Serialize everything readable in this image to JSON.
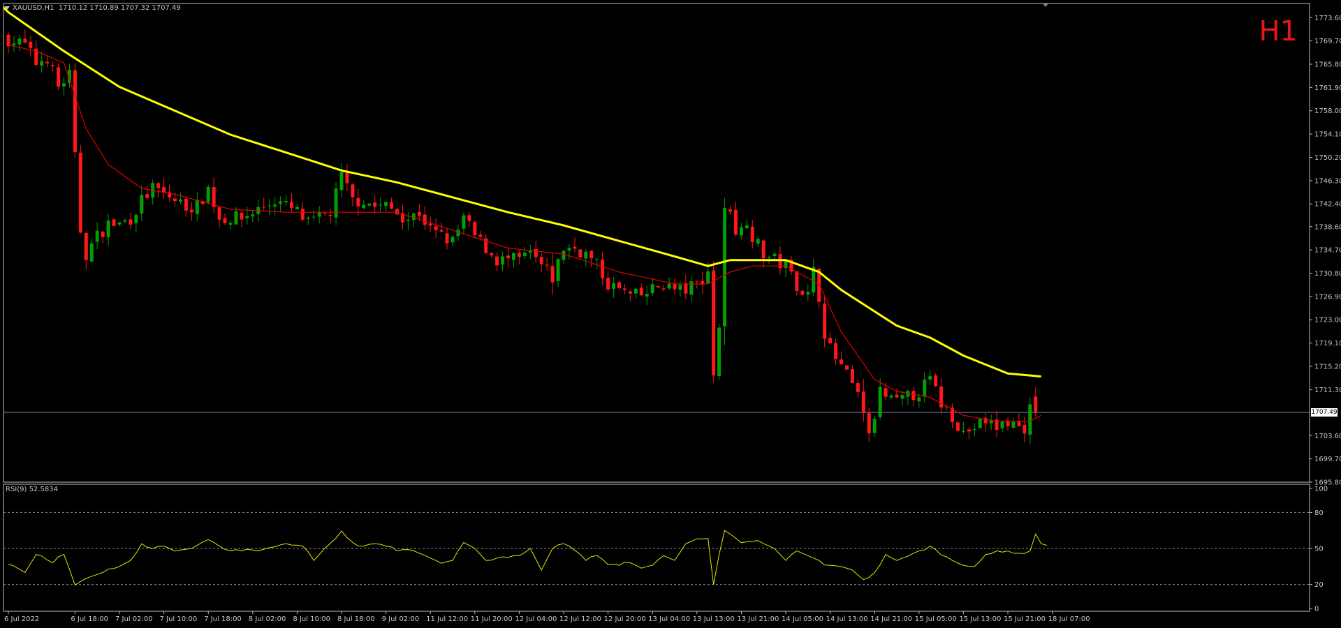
{
  "header": {
    "symbol": "XAUUSD,H1",
    "ohlc": "1710.12 1710.89 1707.32 1707.49"
  },
  "timeframe_label": "H1",
  "current_price": "1707.49",
  "rsi": {
    "label": "RSI(9) 52.5834",
    "levels": [
      80,
      50,
      20
    ],
    "ticks": [
      "100",
      "80",
      "50",
      "20",
      "0"
    ]
  },
  "colors": {
    "bull": "#00a000",
    "bear": "#ff1818",
    "ma_slow": "#ffff00",
    "ma_fast": "#e00000",
    "rsi_line": "#e6e600",
    "axis_text": "#c8c8c8",
    "frame": "#c0c0c0",
    "level_line": "#8c8c8c",
    "price_line": "#7a8aa0",
    "timeframe_text": "#e8151b"
  },
  "chart_data": [
    {
      "type": "candlestick",
      "symbol": "XAUUSD",
      "ylim": [
        1695.8,
        1775.5
      ],
      "y_ticks": [
        "1773.60",
        "1769.70",
        "1765.80",
        "1761.90",
        "1758.00",
        "1754.10",
        "1750.20",
        "1746.30",
        "1742.40",
        "1738.60",
        "1734.70",
        "1730.80",
        "1726.90",
        "1723.00",
        "1719.10",
        "1715.20",
        "1711.30",
        "1707.49",
        "1703.60",
        "1699.70",
        "1695.80"
      ],
      "x_ticks": [
        {
          "label": "6 Jul 2022",
          "i": 0
        },
        {
          "label": "6 Jul 18:00",
          "i": 12
        },
        {
          "label": "7 Jul 02:00",
          "i": 20
        },
        {
          "label": "7 Jul 10:00",
          "i": 28
        },
        {
          "label": "7 Jul 18:00",
          "i": 36
        },
        {
          "label": "8 Jul 02:00",
          "i": 44
        },
        {
          "label": "8 Jul 10:00",
          "i": 52
        },
        {
          "label": "8 Jul 18:00",
          "i": 60
        },
        {
          "label": "9 Jul 02:00",
          "i": 68
        },
        {
          "label": "11 Jul 12:00",
          "i": 76
        },
        {
          "label": "11 Jul 20:00",
          "i": 84
        },
        {
          "label": "12 Jul 04:00",
          "i": 92
        },
        {
          "label": "12 Jul 12:00",
          "i": 100
        },
        {
          "label": "12 Jul 20:00",
          "i": 108
        },
        {
          "label": "13 Jul 04:00",
          "i": 116
        },
        {
          "label": "13 Jul 13:00",
          "i": 124
        },
        {
          "label": "13 Jul 21:00",
          "i": 132
        },
        {
          "label": "14 Jul 05:00",
          "i": 140
        },
        {
          "label": "14 Jul 13:00",
          "i": 148
        },
        {
          "label": "14 Jul 21:00",
          "i": 156
        },
        {
          "label": "15 Jul 05:00",
          "i": 164
        },
        {
          "label": "15 Jul 13:00",
          "i": 172
        },
        {
          "label": "15 Jul 21:00",
          "i": 180
        },
        {
          "label": "18 Jul 07:00",
          "i": 188
        }
      ],
      "anchors": [
        [
          0,
          1770
        ],
        [
          3,
          1769
        ],
        [
          5,
          1766
        ],
        [
          7,
          1767
        ],
        [
          9,
          1762
        ],
        [
          11,
          1764
        ],
        [
          12,
          1750
        ],
        [
          13,
          1738
        ],
        [
          14,
          1734
        ],
        [
          16,
          1737
        ],
        [
          18,
          1739
        ],
        [
          20,
          1739
        ],
        [
          22,
          1740
        ],
        [
          24,
          1743
        ],
        [
          26,
          1745
        ],
        [
          28,
          1744
        ],
        [
          30,
          1743
        ],
        [
          32,
          1742
        ],
        [
          34,
          1742
        ],
        [
          36,
          1745
        ],
        [
          38,
          1740
        ],
        [
          40,
          1740
        ],
        [
          42,
          1740
        ],
        [
          44,
          1741
        ],
        [
          46,
          1742
        ],
        [
          48,
          1743
        ],
        [
          50,
          1742
        ],
        [
          52,
          1741
        ],
        [
          54,
          1739
        ],
        [
          56,
          1740
        ],
        [
          58,
          1741
        ],
        [
          60,
          1747
        ],
        [
          62,
          1743
        ],
        [
          64,
          1743
        ],
        [
          66,
          1742
        ],
        [
          68,
          1742
        ],
        [
          70,
          1741
        ],
        [
          72,
          1740
        ],
        [
          74,
          1741
        ],
        [
          76,
          1738
        ],
        [
          78,
          1737
        ],
        [
          80,
          1736
        ],
        [
          82,
          1740
        ],
        [
          84,
          1737
        ],
        [
          86,
          1735
        ],
        [
          88,
          1733
        ],
        [
          90,
          1733
        ],
        [
          92,
          1733
        ],
        [
          94,
          1734
        ],
        [
          96,
          1732
        ],
        [
          98,
          1730
        ],
        [
          100,
          1735
        ],
        [
          102,
          1735
        ],
        [
          104,
          1734
        ],
        [
          106,
          1732
        ],
        [
          108,
          1729
        ],
        [
          110,
          1728
        ],
        [
          112,
          1727
        ],
        [
          114,
          1727
        ],
        [
          116,
          1728
        ],
        [
          118,
          1729
        ],
        [
          120,
          1728
        ],
        [
          122,
          1728
        ],
        [
          124,
          1729
        ],
        [
          126,
          1731
        ],
        [
          127,
          1714
        ],
        [
          128,
          1722
        ],
        [
          129,
          1741
        ],
        [
          130,
          1742
        ],
        [
          131,
          1738
        ],
        [
          132,
          1738
        ],
        [
          133,
          1740
        ],
        [
          134,
          1737
        ],
        [
          136,
          1734
        ],
        [
          138,
          1733
        ],
        [
          140,
          1732
        ],
        [
          142,
          1729
        ],
        [
          144,
          1727
        ],
        [
          145,
          1731
        ],
        [
          146,
          1727
        ],
        [
          147,
          1721
        ],
        [
          148,
          1718
        ],
        [
          150,
          1715
        ],
        [
          152,
          1712
        ],
        [
          154,
          1708
        ],
        [
          155,
          1703
        ],
        [
          156,
          1707
        ],
        [
          157,
          1711
        ],
        [
          158,
          1710
        ],
        [
          160,
          1709
        ],
        [
          162,
          1710
        ],
        [
          164,
          1711
        ],
        [
          166,
          1713
        ],
        [
          168,
          1709
        ],
        [
          170,
          1707
        ],
        [
          172,
          1704
        ],
        [
          174,
          1705
        ],
        [
          176,
          1706
        ],
        [
          178,
          1705
        ],
        [
          180,
          1706
        ],
        [
          182,
          1705
        ],
        [
          183,
          1705
        ],
        [
          184,
          1708
        ],
        [
          185,
          1707.49
        ]
      ],
      "current_price": 1707.49,
      "ma_slow": {
        "color": "#ffff00",
        "points": [
          [
            -4,
            1778
          ],
          [
            0,
            1774.5
          ],
          [
            10,
            1768
          ],
          [
            20,
            1762
          ],
          [
            30,
            1758
          ],
          [
            40,
            1754
          ],
          [
            50,
            1751
          ],
          [
            60,
            1748
          ],
          [
            70,
            1746
          ],
          [
            80,
            1743.5
          ],
          [
            90,
            1741
          ],
          [
            100,
            1738.8
          ],
          [
            110,
            1736.2
          ],
          [
            120,
            1733.6
          ],
          [
            126,
            1732
          ],
          [
            130,
            1733
          ],
          [
            140,
            1733
          ],
          [
            146,
            1731
          ],
          [
            150,
            1728
          ],
          [
            160,
            1722
          ],
          [
            166,
            1720
          ],
          [
            172,
            1717
          ],
          [
            180,
            1714
          ],
          [
            186,
            1713.5
          ]
        ]
      },
      "ma_fast": {
        "color": "#e00000",
        "points": [
          [
            0,
            1769
          ],
          [
            5,
            1768
          ],
          [
            10,
            1766
          ],
          [
            14,
            1755
          ],
          [
            18,
            1749
          ],
          [
            24,
            1745
          ],
          [
            30,
            1744
          ],
          [
            40,
            1741.5
          ],
          [
            50,
            1741
          ],
          [
            60,
            1741
          ],
          [
            70,
            1741
          ],
          [
            80,
            1738
          ],
          [
            90,
            1735
          ],
          [
            100,
            1734
          ],
          [
            110,
            1731
          ],
          [
            120,
            1729
          ],
          [
            126,
            1729
          ],
          [
            130,
            1731
          ],
          [
            134,
            1732
          ],
          [
            140,
            1732
          ],
          [
            146,
            1729
          ],
          [
            150,
            1721
          ],
          [
            156,
            1713
          ],
          [
            160,
            1711
          ],
          [
            166,
            1710
          ],
          [
            172,
            1707
          ],
          [
            178,
            1706
          ],
          [
            184,
            1706
          ],
          [
            186,
            1707
          ]
        ]
      }
    },
    {
      "type": "line",
      "name": "RSI(9) 52.5834",
      "ylim": [
        0,
        100
      ],
      "levels": [
        80,
        50,
        20
      ],
      "anchors": [
        [
          0,
          38
        ],
        [
          3,
          30
        ],
        [
          5,
          45
        ],
        [
          8,
          38
        ],
        [
          10,
          45
        ],
        [
          12,
          20
        ],
        [
          14,
          25
        ],
        [
          17,
          30
        ],
        [
          20,
          35
        ],
        [
          22,
          40
        ],
        [
          24,
          52
        ],
        [
          26,
          50
        ],
        [
          28,
          52
        ],
        [
          30,
          48
        ],
        [
          33,
          50
        ],
        [
          36,
          58
        ],
        [
          38,
          52
        ],
        [
          40,
          48
        ],
        [
          42,
          50
        ],
        [
          45,
          48
        ],
        [
          48,
          52
        ],
        [
          50,
          54
        ],
        [
          53,
          52
        ],
        [
          55,
          40
        ],
        [
          57,
          50
        ],
        [
          60,
          63
        ],
        [
          62,
          55
        ],
        [
          64,
          52
        ],
        [
          66,
          55
        ],
        [
          68,
          52
        ],
        [
          70,
          48
        ],
        [
          72,
          50
        ],
        [
          74,
          46
        ],
        [
          76,
          42
        ],
        [
          78,
          38
        ],
        [
          80,
          40
        ],
        [
          82,
          55
        ],
        [
          84,
          50
        ],
        [
          86,
          40
        ],
        [
          88,
          42
        ],
        [
          90,
          44
        ],
        [
          92,
          44
        ],
        [
          94,
          50
        ],
        [
          96,
          32
        ],
        [
          98,
          50
        ],
        [
          100,
          54
        ],
        [
          102,
          50
        ],
        [
          104,
          40
        ],
        [
          106,
          44
        ],
        [
          108,
          38
        ],
        [
          110,
          36
        ],
        [
          112,
          38
        ],
        [
          114,
          34
        ],
        [
          116,
          36
        ],
        [
          118,
          44
        ],
        [
          120,
          40
        ],
        [
          122,
          54
        ],
        [
          124,
          58
        ],
        [
          126,
          58
        ],
        [
          127,
          20
        ],
        [
          128,
          45
        ],
        [
          129,
          67
        ],
        [
          130,
          62
        ],
        [
          132,
          55
        ],
        [
          134,
          56
        ],
        [
          136,
          54
        ],
        [
          138,
          50
        ],
        [
          140,
          40
        ],
        [
          142,
          48
        ],
        [
          144,
          44
        ],
        [
          146,
          40
        ],
        [
          148,
          36
        ],
        [
          150,
          35
        ],
        [
          152,
          32
        ],
        [
          154,
          24
        ],
        [
          156,
          28
        ],
        [
          158,
          45
        ],
        [
          160,
          40
        ],
        [
          162,
          44
        ],
        [
          164,
          48
        ],
        [
          166,
          52
        ],
        [
          168,
          46
        ],
        [
          170,
          40
        ],
        [
          172,
          36
        ],
        [
          174,
          34
        ],
        [
          176,
          45
        ],
        [
          178,
          48
        ],
        [
          180,
          46
        ],
        [
          182,
          46
        ],
        [
          184,
          48
        ],
        [
          185,
          62
        ],
        [
          186,
          55
        ],
        [
          187,
          52.58
        ]
      ]
    }
  ]
}
